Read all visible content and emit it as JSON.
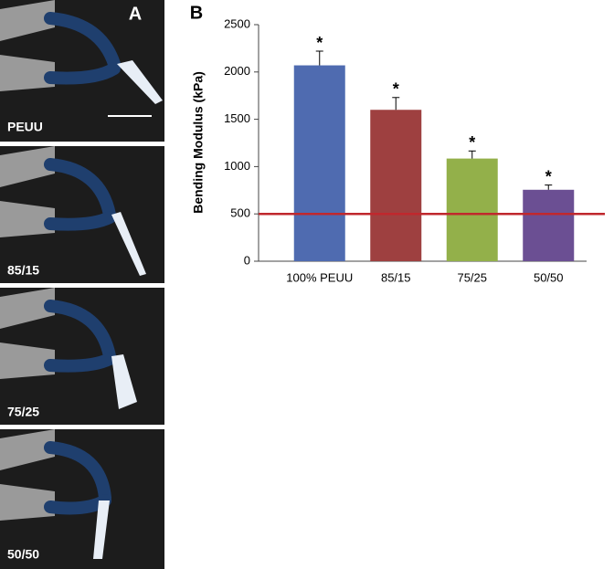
{
  "panels": {
    "a_label": "A",
    "b_label": "B",
    "photo_labels": [
      "PEUU",
      "85/15",
      "75/25",
      "50/50"
    ]
  },
  "chart_data": {
    "type": "bar",
    "ylabel": "Bending Modulus (kPa)",
    "categories": [
      "100% PEUU",
      "85/15",
      "75/25",
      "50/50"
    ],
    "values": [
      2070,
      1600,
      1085,
      755
    ],
    "errors": [
      150,
      130,
      80,
      50
    ],
    "significance_marks": [
      "*",
      "*",
      "*",
      "*"
    ],
    "colors": [
      "#4f6bb0",
      "#9e4040",
      "#93b04a",
      "#6b4f93"
    ],
    "reference_line": 500,
    "reference_color": "#c0282d",
    "ylim": [
      0,
      2500
    ],
    "yticks": [
      0,
      500,
      1000,
      1500,
      2000,
      2500
    ]
  }
}
